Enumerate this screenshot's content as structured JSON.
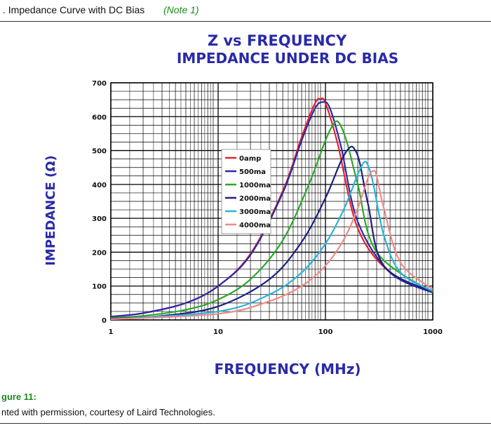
{
  "header": {
    "title": ". Impedance Curve with DC Bias",
    "note": "(Note 1)"
  },
  "caption": {
    "label": "gure 11:",
    "text": "nted with permission, courtesy of Laird Technologies."
  },
  "chart_data": {
    "type": "line",
    "title": "Z vs FREQUENCY",
    "subtitle": "IMPEDANCE UNDER DC BIAS",
    "xlabel": "FREQUENCY (MHz)",
    "ylabel": "IMPEDANCE (Ω)",
    "xscale": "log",
    "xlim": [
      1,
      1000
    ],
    "ylim": [
      0,
      700
    ],
    "xticks": [
      1,
      10,
      100,
      1000
    ],
    "xtick_labels": [
      "1",
      "10",
      "100",
      "1000"
    ],
    "yticks": [
      0,
      100,
      200,
      300,
      400,
      500,
      600,
      700
    ],
    "ytick_labels": [
      "0",
      "100",
      "200",
      "300",
      "400",
      "500",
      "600",
      "700"
    ],
    "grid": true,
    "legend_position": "top-center",
    "title_color": "#2a2aa8",
    "series": [
      {
        "name": "0amp",
        "color": "#e8202a",
        "x": [
          1,
          2,
          5,
          10,
          20,
          40,
          60,
          80,
          90,
          100,
          130,
          200,
          400,
          1000
        ],
        "y": [
          10,
          20,
          50,
          100,
          195,
          380,
          540,
          640,
          652,
          640,
          520,
          270,
          140,
          80
        ]
      },
      {
        "name": "500ma",
        "color": "#2a2aa8",
        "x": [
          1,
          2,
          5,
          10,
          20,
          40,
          60,
          80,
          95,
          110,
          140,
          200,
          400,
          1000
        ],
        "y": [
          10,
          20,
          50,
          100,
          192,
          375,
          530,
          625,
          643,
          625,
          510,
          290,
          140,
          80
        ]
      },
      {
        "name": "1000ma",
        "color": "#2aa82a",
        "x": [
          1,
          2,
          5,
          10,
          20,
          40,
          70,
          100,
          120,
          135,
          160,
          200,
          300,
          1000
        ],
        "y": [
          6,
          12,
          30,
          60,
          120,
          235,
          400,
          530,
          580,
          580,
          520,
          400,
          200,
          80
        ]
      },
      {
        "name": "2000ma",
        "color": "#1e1e80",
        "x": [
          1,
          3,
          10,
          30,
          60,
          100,
          140,
          170,
          190,
          210,
          250,
          350,
          1000
        ],
        "y": [
          4,
          12,
          40,
          120,
          230,
          360,
          470,
          510,
          500,
          460,
          340,
          160,
          82
        ]
      },
      {
        "name": "3000ma",
        "color": "#28b4d8",
        "x": [
          1,
          10,
          30,
          60,
          100,
          150,
          200,
          230,
          250,
          280,
          350,
          500,
          1000
        ],
        "y": [
          2,
          25,
          75,
          140,
          225,
          330,
          430,
          466,
          455,
          400,
          250,
          140,
          85
        ]
      },
      {
        "name": "4000ma",
        "color": "#f08a8a",
        "x": [
          1,
          10,
          30,
          60,
          100,
          150,
          200,
          250,
          280,
          300,
          350,
          500,
          1000
        ],
        "y": [
          2,
          18,
          55,
          100,
          160,
          240,
          330,
          420,
          440,
          425,
          330,
          170,
          90
        ]
      }
    ]
  }
}
